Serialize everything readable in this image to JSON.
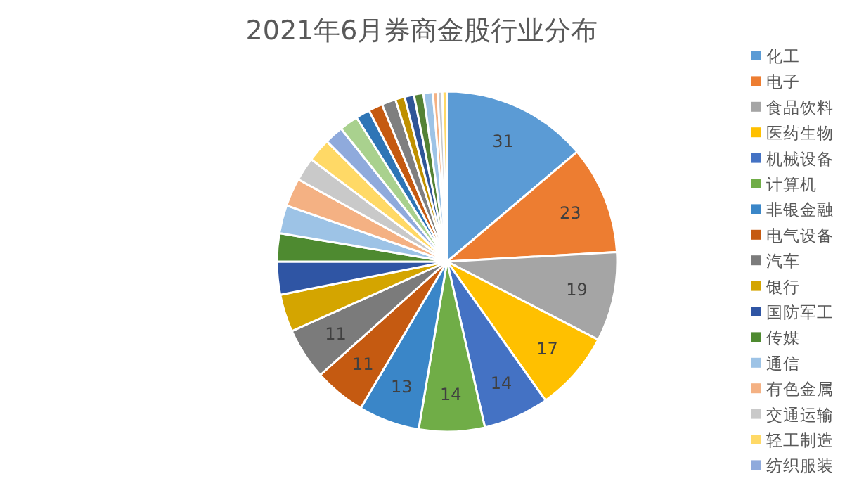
{
  "chart_data": {
    "type": "pie",
    "title": "2021年6月券商金股行业分布",
    "categories": [
      "化工",
      "电子",
      "食品饮料",
      "医药生物",
      "机械设备",
      "计算机",
      "非银金融",
      "电气设备",
      "汽车",
      "银行",
      "国防军工",
      "传媒",
      "通信",
      "有色金属",
      "交通运输",
      "轻工制造",
      "纺织服装",
      null,
      null,
      null,
      null,
      null,
      null,
      null,
      null,
      null,
      null,
      null
    ],
    "values": [
      31,
      23,
      19,
      17,
      14,
      14,
      13,
      11,
      11,
      8,
      7,
      6,
      6,
      6,
      5,
      5,
      4,
      4,
      3,
      3,
      3,
      2,
      2,
      2,
      2,
      1,
      1,
      1
    ],
    "value_labels": [
      "31",
      "23",
      "19",
      "17",
      "14",
      "14",
      "13",
      "11",
      "11",
      null,
      null,
      null,
      null,
      null,
      null,
      null,
      null,
      null,
      null,
      null,
      null,
      null,
      null,
      null,
      null,
      null,
      null,
      null
    ],
    "colors": [
      "#5b9bd5",
      "#ed7d31",
      "#a5a5a5",
      "#ffc000",
      "#4472c4",
      "#70ad47",
      "#3a86c8",
      "#c55a11",
      "#7b7b7b",
      "#d4a500",
      "#2f55a4",
      "#4e8a30",
      "#9dc3e6",
      "#f4b183",
      "#c9c9c9",
      "#ffd966",
      "#8faadc",
      "#a9d18e",
      "#2e75b6",
      "#c55a11",
      "#7f7f7f",
      "#bf9000",
      "#2f5597",
      "#548235",
      "#9dc3e6",
      "#f4b183",
      "#c9c9c9",
      "#ffd966"
    ],
    "legend": "right"
  }
}
